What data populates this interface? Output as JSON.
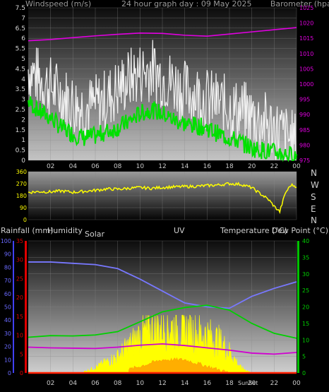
{
  "top_labels": {
    "windspeed": "Windspeed (m/s)",
    "title": "24 hour graph day : 09 May 2025",
    "barometer": "Barometer (hpa)"
  },
  "mid_labels": {
    "compass": [
      "N",
      "W",
      "S",
      "E",
      "N"
    ]
  },
  "bottom_labels": {
    "rainfall": "Rainfall (mm)",
    "humidity": "Humidity",
    "solar": "Solar",
    "uv": "UV",
    "temperature": "Temperature (°C)",
    "dewpoint": "Dew Point (°C)",
    "sunset": "SunSet"
  },
  "colors": {
    "wind_gust": "#f0f0f0",
    "wind_avg": "#00e000",
    "barometer": "#e000e0",
    "direction": "#ffff00",
    "humidity": "#7878ff",
    "temperature": "#00d000",
    "dewpoint": "#d000d0",
    "solar": "#ffff00",
    "uv": "#ffa000",
    "rain": "#ff2000",
    "axis_red": "#e00000",
    "axis_blue": "#4040ff",
    "axis_green": "#00c000"
  },
  "chart_data": [
    {
      "type": "line",
      "x_ticks": [
        "02",
        "04",
        "06",
        "08",
        "10",
        "12",
        "14",
        "16",
        "18",
        "20",
        "22",
        "00"
      ],
      "left_axis": {
        "ticks": [
          "0",
          "0.5",
          "1",
          "1.5",
          "2",
          "2.5",
          "3",
          "3.5",
          "4",
          "4.5",
          "5",
          "5.5",
          "6",
          "6.5",
          "7",
          "7.5"
        ],
        "ylim": [
          0,
          7.5
        ]
      },
      "right_axis": {
        "ticks": [
          "975",
          "980",
          "985",
          "990",
          "995",
          "1000",
          "1005",
          "1010",
          "1015",
          "1020",
          "1025"
        ],
        "ylim": [
          975,
          1025
        ]
      },
      "series": [
        {
          "name": "Windspeed (m/s)",
          "style": "gust",
          "x": [
            0,
            1,
            2,
            3,
            4,
            5,
            6,
            7,
            8,
            9,
            10,
            11,
            12,
            13,
            14,
            15,
            16,
            17,
            18,
            19,
            20,
            21,
            22,
            23,
            24
          ],
          "values": [
            4.5,
            4.0,
            3.6,
            3.2,
            2.8,
            2.6,
            2.7,
            3.0,
            3.5,
            4.0,
            4.3,
            4.5,
            4.1,
            3.8,
            3.4,
            3.3,
            3.0,
            2.8,
            2.6,
            2.4,
            2.2,
            1.9,
            1.6,
            1.2,
            0.8
          ]
        },
        {
          "style": "avg",
          "x": [
            0,
            1,
            2,
            3,
            4,
            5,
            6,
            7,
            8,
            9,
            10,
            11,
            12,
            13,
            14,
            15,
            16,
            17,
            18,
            19,
            20,
            21,
            22,
            23,
            24
          ],
          "values": [
            2.9,
            2.4,
            2.1,
            1.6,
            1.3,
            1.1,
            1.2,
            1.4,
            1.6,
            1.9,
            2.3,
            2.5,
            2.3,
            2.0,
            1.8,
            1.7,
            1.6,
            1.3,
            1.1,
            0.9,
            0.6,
            0.5,
            0.4,
            0.3,
            0.2
          ]
        },
        {
          "name": "Barometer (hpa)",
          "axis": "right",
          "x": [
            0,
            2,
            4,
            6,
            8,
            10,
            12,
            14,
            16,
            18,
            20,
            22,
            24
          ],
          "values": [
            1014.2,
            1014.6,
            1015.2,
            1015.8,
            1016.3,
            1016.7,
            1016.6,
            1016.0,
            1015.7,
            1016.4,
            1017.1,
            1017.8,
            1018.5
          ]
        }
      ]
    },
    {
      "type": "scatter",
      "left_axis": {
        "ticks": [
          "0",
          "90",
          "180",
          "270",
          "360"
        ],
        "ylim": [
          0,
          360
        ]
      },
      "series": [
        {
          "style": "direction",
          "x": [
            0,
            1,
            2,
            3,
            4,
            5,
            6,
            7,
            8,
            9,
            10,
            11,
            12,
            13,
            14,
            15,
            16,
            17,
            18,
            19,
            20,
            20.5,
            21,
            21.5,
            22,
            22.5,
            23,
            23.5,
            24
          ],
          "values": [
            205,
            210,
            208,
            215,
            205,
            212,
            220,
            230,
            228,
            235,
            240,
            235,
            242,
            245,
            248,
            250,
            255,
            260,
            270,
            265,
            240,
            210,
            180,
            150,
            100,
            60,
            200,
            260,
            250
          ]
        }
      ]
    },
    {
      "type": "line",
      "left_axis_rain": {
        "ticks": [
          "0",
          "5",
          "10",
          "15",
          "20",
          "25",
          "30",
          "35"
        ],
        "ylim": [
          0,
          35
        ]
      },
      "left_axis_humidity": {
        "ticks": [
          "0",
          "10",
          "20",
          "30",
          "40",
          "50",
          "60",
          "70",
          "80",
          "90",
          "100"
        ],
        "ylim": [
          0,
          100
        ]
      },
      "right_axis": {
        "ticks": [
          "0",
          "5",
          "10",
          "15",
          "20",
          "25",
          "30",
          "35",
          "40"
        ],
        "ylim": [
          0,
          40
        ]
      },
      "series": [
        {
          "name": "Humidity",
          "axis": "humidity",
          "x": [
            0,
            2,
            4,
            6,
            8,
            10,
            12,
            14,
            16,
            18,
            20,
            22,
            24
          ],
          "values": [
            84,
            84,
            83,
            82,
            79,
            71,
            62,
            53,
            50,
            49,
            58,
            64,
            69
          ]
        },
        {
          "name": "Temperature (°C)",
          "axis": "right",
          "x": [
            0,
            2,
            4,
            6,
            8,
            10,
            12,
            14,
            16,
            18,
            20,
            22,
            24
          ],
          "values": [
            10.8,
            11.3,
            11.2,
            11.5,
            12.5,
            15.5,
            18.5,
            19.8,
            20.5,
            19.0,
            15.0,
            12.0,
            10.5
          ]
        },
        {
          "name": "Dew Point (°C)",
          "axis": "right",
          "x": [
            0,
            2,
            4,
            6,
            8,
            10,
            12,
            14,
            16,
            18,
            20,
            22,
            24
          ],
          "values": [
            7.8,
            7.6,
            7.5,
            7.4,
            7.8,
            8.4,
            8.8,
            8.3,
            7.6,
            6.9,
            6.0,
            5.7,
            6.2
          ]
        },
        {
          "name": "Solar",
          "style": "area",
          "axis": "right",
          "x": [
            5,
            6,
            7,
            8,
            9,
            10,
            11,
            12,
            13,
            14,
            15,
            16,
            17,
            18,
            19,
            20
          ],
          "values": [
            0.5,
            2,
            4,
            6,
            10,
            14,
            16,
            17,
            17,
            16,
            15,
            14,
            12,
            8,
            2,
            0
          ]
        },
        {
          "name": "UV",
          "style": "area",
          "axis": "right",
          "x": [
            9,
            10,
            11,
            12,
            13,
            14,
            15,
            16,
            17,
            18
          ],
          "values": [
            1,
            2,
            3,
            4,
            4,
            4,
            3,
            2,
            1,
            0
          ]
        },
        {
          "name": "Rainfall (mm)",
          "axis": "rain",
          "x": [
            0,
            24
          ],
          "values": [
            0,
            0
          ]
        }
      ]
    }
  ]
}
